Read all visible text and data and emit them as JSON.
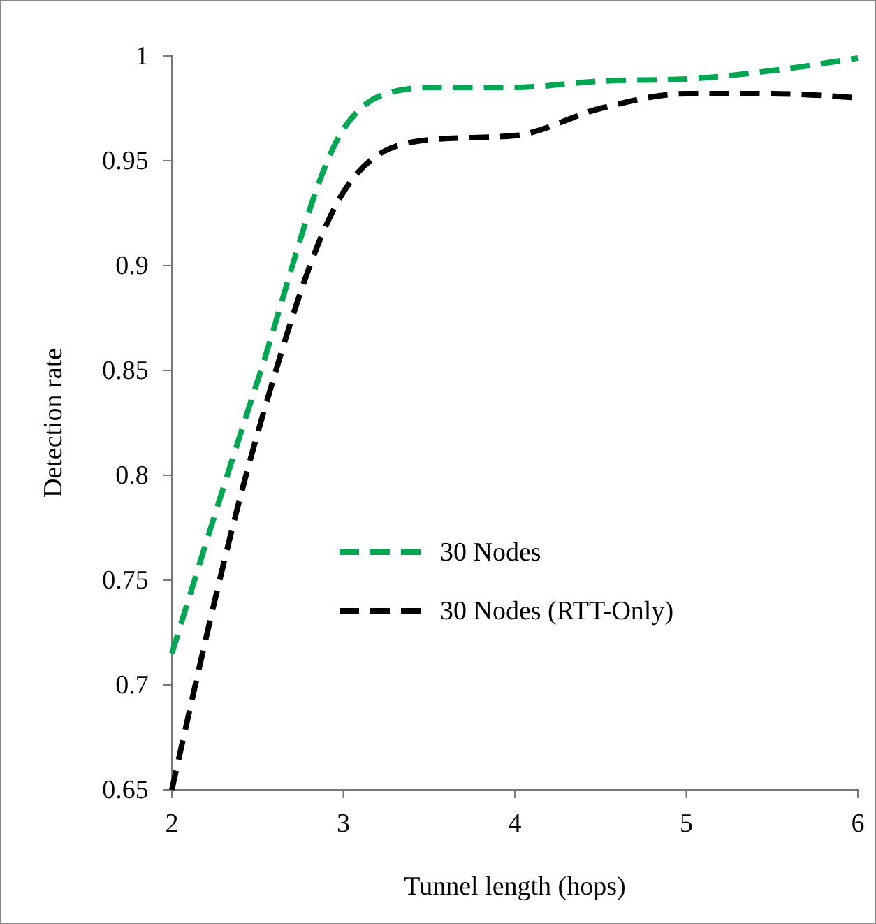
{
  "chart_data": {
    "type": "line",
    "xlabel": "Tunnel length (hops)",
    "ylabel": "Detection rate",
    "xlim": [
      2,
      6
    ],
    "ylim": [
      0.65,
      1
    ],
    "xticks": [
      2,
      3,
      4,
      5,
      6
    ],
    "yticks": [
      0.65,
      0.7,
      0.75,
      0.8,
      0.85,
      0.9,
      0.95,
      1
    ],
    "grid": false,
    "legend": "bottom",
    "marker": "none",
    "line_style": "dashed",
    "series": [
      {
        "name": "30 Nodes",
        "color": "#00a651",
        "x": [
          2,
          2.5,
          3,
          3.25,
          3.5,
          4,
          4.5,
          5,
          5.5,
          6
        ],
        "values": [
          0.715,
          0.845,
          0.965,
          0.982,
          0.985,
          0.985,
          0.988,
          0.989,
          0.993,
          0.999
        ]
      },
      {
        "name": "30 Nodes (RTT-Only)",
        "color": "#000000",
        "x": [
          2,
          2.5,
          3,
          3.25,
          3.5,
          4,
          4.5,
          5,
          5.5,
          6
        ],
        "values": [
          0.65,
          0.82,
          0.935,
          0.955,
          0.96,
          0.962,
          0.975,
          0.982,
          0.982,
          0.98
        ]
      }
    ]
  }
}
